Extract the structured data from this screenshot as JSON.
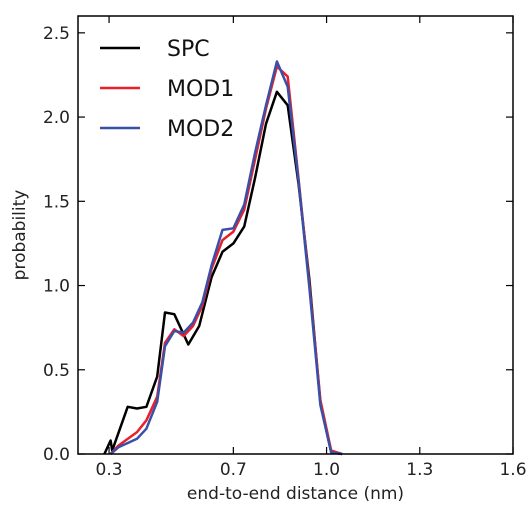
{
  "chart_data": {
    "type": "line",
    "xlabel": "end-to-end distance (nm)",
    "ylabel": "probability",
    "xlim": [
      0.2,
      1.6
    ],
    "ylim": [
      0.0,
      2.6
    ],
    "xticks": [
      0.3,
      0.7,
      1.0,
      1.3,
      1.6
    ],
    "xtick_labels": [
      "0.3",
      "0.7",
      "1.0",
      "1.3",
      "1.6"
    ],
    "yticks": [
      0.0,
      0.5,
      1.0,
      1.5,
      2.0,
      2.5
    ],
    "ytick_labels": [
      "0.0",
      "0.5",
      "1.0",
      "1.5",
      "2.0",
      "2.5"
    ],
    "grid": false,
    "legend": "top-left",
    "series": [
      {
        "name": "SPC",
        "color": "#000000",
        "points": [
          [
            0.285,
            0.0
          ],
          [
            0.305,
            0.08
          ],
          [
            0.31,
            0.02
          ],
          [
            0.36,
            0.28
          ],
          [
            0.39,
            0.27
          ],
          [
            0.42,
            0.28
          ],
          [
            0.455,
            0.46
          ],
          [
            0.48,
            0.84
          ],
          [
            0.51,
            0.83
          ],
          [
            0.555,
            0.65
          ],
          [
            0.59,
            0.76
          ],
          [
            0.63,
            1.05
          ],
          [
            0.665,
            1.2
          ],
          [
            0.7,
            1.25
          ],
          [
            0.735,
            1.35
          ],
          [
            0.77,
            1.64
          ],
          [
            0.805,
            1.96
          ],
          [
            0.84,
            2.15
          ],
          [
            0.875,
            2.07
          ],
          [
            0.91,
            1.6
          ],
          [
            0.945,
            1.03
          ],
          [
            0.98,
            0.3
          ],
          [
            1.015,
            0.01
          ],
          [
            1.05,
            0.0
          ]
        ]
      },
      {
        "name": "MOD1",
        "color": "#e8202a",
        "points": [
          [
            0.305,
            0.0
          ],
          [
            0.33,
            0.05
          ],
          [
            0.39,
            0.13
          ],
          [
            0.42,
            0.2
          ],
          [
            0.455,
            0.34
          ],
          [
            0.48,
            0.66
          ],
          [
            0.51,
            0.74
          ],
          [
            0.54,
            0.7
          ],
          [
            0.57,
            0.76
          ],
          [
            0.6,
            0.88
          ],
          [
            0.63,
            1.1
          ],
          [
            0.665,
            1.27
          ],
          [
            0.7,
            1.32
          ],
          [
            0.735,
            1.45
          ],
          [
            0.77,
            1.75
          ],
          [
            0.805,
            2.05
          ],
          [
            0.84,
            2.3
          ],
          [
            0.875,
            2.24
          ],
          [
            0.91,
            1.63
          ],
          [
            0.945,
            1.0
          ],
          [
            0.98,
            0.32
          ],
          [
            1.015,
            0.02
          ],
          [
            1.05,
            0.0
          ]
        ]
      },
      {
        "name": "MOD2",
        "color": "#3a4fa8",
        "points": [
          [
            0.305,
            0.0
          ],
          [
            0.33,
            0.04
          ],
          [
            0.39,
            0.09
          ],
          [
            0.42,
            0.15
          ],
          [
            0.455,
            0.31
          ],
          [
            0.48,
            0.64
          ],
          [
            0.51,
            0.73
          ],
          [
            0.54,
            0.72
          ],
          [
            0.57,
            0.78
          ],
          [
            0.6,
            0.9
          ],
          [
            0.63,
            1.12
          ],
          [
            0.665,
            1.33
          ],
          [
            0.7,
            1.34
          ],
          [
            0.735,
            1.48
          ],
          [
            0.77,
            1.79
          ],
          [
            0.805,
            2.07
          ],
          [
            0.84,
            2.33
          ],
          [
            0.875,
            2.18
          ],
          [
            0.91,
            1.62
          ],
          [
            0.945,
            0.98
          ],
          [
            0.98,
            0.29
          ],
          [
            1.015,
            0.01
          ],
          [
            1.05,
            0.0
          ]
        ]
      }
    ]
  }
}
